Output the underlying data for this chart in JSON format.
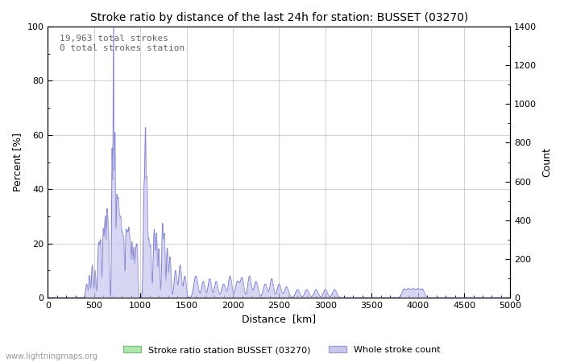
{
  "title": "Stroke ratio by distance of the last 24h for station: BUSSET (03270)",
  "xlabel": "Distance  [km]",
  "ylabel_left": "Percent [%]",
  "ylabel_right": "Count",
  "annotation_line1": "19,963 total strokes",
  "annotation_line2": "0 total strokes station",
  "watermark": "www.lightningmaps.org",
  "xlim": [
    0,
    5000
  ],
  "ylim_left": [
    0,
    100
  ],
  "ylim_right": [
    0,
    1400
  ],
  "xticks": [
    0,
    500,
    1000,
    1500,
    2000,
    2500,
    3000,
    3500,
    4000,
    4500,
    5000
  ],
  "yticks_left": [
    0,
    20,
    40,
    60,
    80,
    100
  ],
  "yticks_right": [
    0,
    200,
    400,
    600,
    800,
    1000,
    1200,
    1400
  ],
  "legend_items": [
    {
      "label": "Stroke ratio station BUSSET (03270)",
      "facecolor": "#b0e8b0",
      "edgecolor": "#80c080"
    },
    {
      "label": "Whole stroke count",
      "facecolor": "#c8c8f0",
      "edgecolor": "#a0a0cc"
    }
  ],
  "line_color": "#8080cc",
  "fill_color": "#c8c8f0",
  "background_color": "#ffffff",
  "grid_color": "#c0c0c0"
}
